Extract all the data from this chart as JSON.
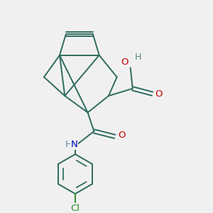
{
  "bg_color": "#f0f0f0",
  "bond_color": "#2e6b5e",
  "bond_width": 1.4,
  "O_color": "#cc0000",
  "N_color": "#0000bb",
  "Cl_color": "#2a8a2a",
  "H_color": "#5a8888",
  "figsize": [
    3.0,
    3.0
  ],
  "dpi": 100,
  "xlim": [
    0,
    10
  ],
  "ylim": [
    0,
    10
  ]
}
